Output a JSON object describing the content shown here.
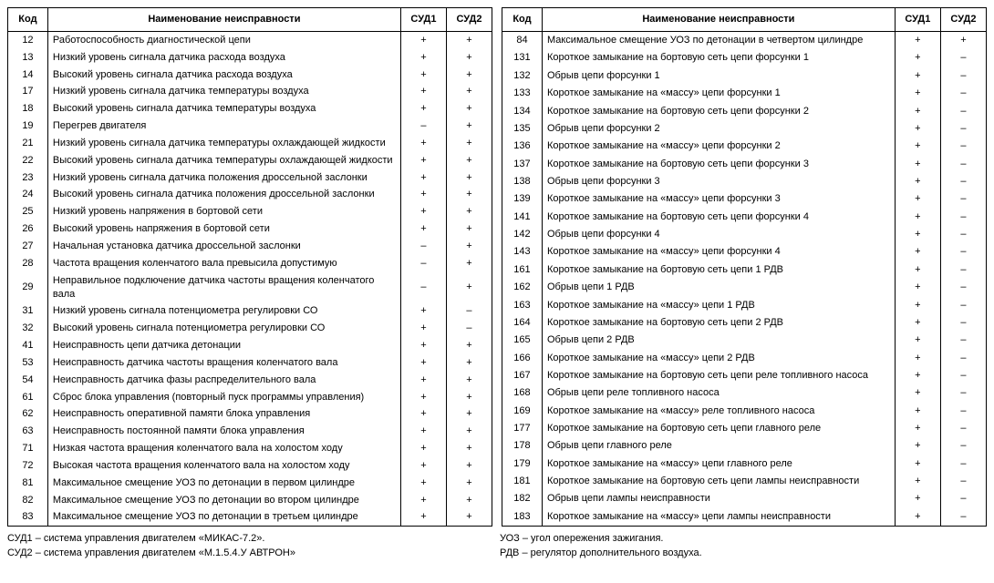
{
  "headers": {
    "code": "Код",
    "name": "Наименование неисправности",
    "sud1": "СУД1",
    "sud2": "СУД2"
  },
  "left_rows": [
    {
      "code": "12",
      "name": "Работоспособность диагностической цепи",
      "s1": "+",
      "s2": "+"
    },
    {
      "code": "13",
      "name": "Низкий уровень сигнала датчика расхода воздуха",
      "s1": "+",
      "s2": "+"
    },
    {
      "code": "14",
      "name": "Высокий уровень сигнала датчика расхода воздуха",
      "s1": "+",
      "s2": "+"
    },
    {
      "code": "17",
      "name": "Низкий уровень сигнала датчика температуры воздуха",
      "s1": "+",
      "s2": "+"
    },
    {
      "code": "18",
      "name": "Высокий уровень сигнала датчика температуры воздуха",
      "s1": "+",
      "s2": "+"
    },
    {
      "code": "19",
      "name": "Перегрев двигателя",
      "s1": "–",
      "s2": "+"
    },
    {
      "code": "21",
      "name": "Низкий уровень сигнала датчика температуры охлаждающей жидкости",
      "s1": "+",
      "s2": "+"
    },
    {
      "code": "22",
      "name": "Высокий уровень сигнала датчика температуры охлаждающей жидкости",
      "s1": "+",
      "s2": "+"
    },
    {
      "code": "23",
      "name": "Низкий уровень сигнала датчика положения дроссельной заслонки",
      "s1": "+",
      "s2": "+"
    },
    {
      "code": "24",
      "name": "Высокий уровень сигнала датчика положения дроссельной заслонки",
      "s1": "+",
      "s2": "+"
    },
    {
      "code": "25",
      "name": "Низкий уровень напряжения в бортовой сети",
      "s1": "+",
      "s2": "+"
    },
    {
      "code": "26",
      "name": "Высокий уровень напряжения в бортовой сети",
      "s1": "+",
      "s2": "+"
    },
    {
      "code": "27",
      "name": "Начальная установка датчика дроссельной заслонки",
      "s1": "–",
      "s2": "+"
    },
    {
      "code": "28",
      "name": "Частота вращения коленчатого вала превысила допустимую",
      "s1": "–",
      "s2": "+"
    },
    {
      "code": "29",
      "name": "Неправильное подключение датчика частоты вращения коленчатого вала",
      "s1": "–",
      "s2": "+"
    },
    {
      "code": "31",
      "name": "Низкий уровень сигнала потенциометра регулировки СО",
      "s1": "+",
      "s2": "–"
    },
    {
      "code": "32",
      "name": "Высокий уровень сигнала потенциометра регулировки СО",
      "s1": "+",
      "s2": "–"
    },
    {
      "code": "41",
      "name": "Неисправность цепи датчика детонации",
      "s1": "+",
      "s2": "+"
    },
    {
      "code": "53",
      "name": "Неисправность датчика частоты вращения коленчатого вала",
      "s1": "+",
      "s2": "+"
    },
    {
      "code": "54",
      "name": "Неисправность датчика фазы распределительного вала",
      "s1": "+",
      "s2": "+"
    },
    {
      "code": "61",
      "name": "Сброс блока управления (повторный пуск программы управления)",
      "s1": "+",
      "s2": "+"
    },
    {
      "code": "62",
      "name": "Неисправность оперативной памяти блока управления",
      "s1": "+",
      "s2": "+"
    },
    {
      "code": "63",
      "name": "Неисправность постоянной памяти блока управления",
      "s1": "+",
      "s2": "+"
    },
    {
      "code": "71",
      "name": "Низкая частота вращения коленчатого вала на холостом ходу",
      "s1": "+",
      "s2": "+"
    },
    {
      "code": "72",
      "name": "Высокая частота вращения коленчатого вала на холостом ходу",
      "s1": "+",
      "s2": "+"
    },
    {
      "code": "81",
      "name": "Максимальное смещение УОЗ по детонации в первом цилиндре",
      "s1": "+",
      "s2": "+"
    },
    {
      "code": "82",
      "name": "Максимальное смещение УОЗ по детонации во втором цилиндре",
      "s1": "+",
      "s2": "+"
    },
    {
      "code": "83",
      "name": "Максимальное смещение УОЗ по детонации в третьем цилиндре",
      "s1": "+",
      "s2": "+"
    }
  ],
  "right_rows": [
    {
      "code": "84",
      "name": "Максимальное смещение УОЗ по детонации в четвертом цилиндре",
      "s1": "+",
      "s2": "+"
    },
    {
      "code": "131",
      "name": "Короткое замыкание на бортовую сеть цепи форсунки 1",
      "s1": "+",
      "s2": "–"
    },
    {
      "code": "132",
      "name": "Обрыв цепи форсунки 1",
      "s1": "+",
      "s2": "–"
    },
    {
      "code": "133",
      "name": "Короткое замыкание на «массу» цепи форсунки 1",
      "s1": "+",
      "s2": "–"
    },
    {
      "code": "134",
      "name": "Короткое замыкание на бортовую сеть цепи форсунки 2",
      "s1": "+",
      "s2": "–"
    },
    {
      "code": "135",
      "name": "Обрыв цепи форсунки 2",
      "s1": "+",
      "s2": "–"
    },
    {
      "code": "136",
      "name": "Короткое замыкание на «массу» цепи форсунки 2",
      "s1": "+",
      "s2": "–"
    },
    {
      "code": "137",
      "name": "Короткое замыкание на бортовую сеть цепи форсунки 3",
      "s1": "+",
      "s2": "–"
    },
    {
      "code": "138",
      "name": "Обрыв цепи форсунки 3",
      "s1": "+",
      "s2": "–"
    },
    {
      "code": "139",
      "name": "Короткое замыкание на «массу» цепи форсунки 3",
      "s1": "+",
      "s2": "–"
    },
    {
      "code": "141",
      "name": "Короткое замыкание на бортовую сеть цепи форсунки 4",
      "s1": "+",
      "s2": "–"
    },
    {
      "code": "142",
      "name": "Обрыв цепи форсунки 4",
      "s1": "+",
      "s2": "–"
    },
    {
      "code": "143",
      "name": "Короткое замыкание на «массу» цепи форсунки 4",
      "s1": "+",
      "s2": "–"
    },
    {
      "code": "161",
      "name": "Короткое замыкание на бортовую сеть цепи 1 РДВ",
      "s1": "+",
      "s2": "–"
    },
    {
      "code": "162",
      "name": "Обрыв цепи 1 РДВ",
      "s1": "+",
      "s2": "–"
    },
    {
      "code": "163",
      "name": "Короткое замыкание на «массу» цепи 1 РДВ",
      "s1": "+",
      "s2": "–"
    },
    {
      "code": "164",
      "name": "Короткое замыкание на бортовую сеть цепи 2 РДВ",
      "s1": "+",
      "s2": "–"
    },
    {
      "code": "165",
      "name": "Обрыв цепи 2 РДВ",
      "s1": "+",
      "s2": "–"
    },
    {
      "code": "166",
      "name": "Короткое замыкание на «массу» цепи 2 РДВ",
      "s1": "+",
      "s2": "–"
    },
    {
      "code": "167",
      "name": "Короткое замыкание на бортовую сеть цепи реле топливного насоса",
      "s1": "+",
      "s2": "–"
    },
    {
      "code": "168",
      "name": "Обрыв цепи реле топливного насоса",
      "s1": "+",
      "s2": "–"
    },
    {
      "code": "169",
      "name": "Короткое замыкание на «массу» реле топливного насоса",
      "s1": "+",
      "s2": "–"
    },
    {
      "code": "177",
      "name": "Короткое замыкание на бортовую сеть цепи главного реле",
      "s1": "+",
      "s2": "–"
    },
    {
      "code": "178",
      "name": "Обрыв цепи главного реле",
      "s1": "+",
      "s2": "–"
    },
    {
      "code": "179",
      "name": "Короткое замыкание на «массу» цепи главного реле",
      "s1": "+",
      "s2": "–"
    },
    {
      "code": "181",
      "name": "Короткое замыкание на бортовую сеть цепи лампы неисправности",
      "s1": "+",
      "s2": "–"
    },
    {
      "code": "182",
      "name": "Обрыв цепи лампы неисправности",
      "s1": "+",
      "s2": "–"
    },
    {
      "code": "183",
      "name": "Короткое замыкание на «массу» цепи лампы неисправности",
      "s1": "+",
      "s2": "–"
    }
  ],
  "footnotes": {
    "left1": "СУД1 – система управления двигателем «МИКАС-7.2».",
    "left2": "СУД2 – система управления двигателем «М.1.5.4.У АВТРОН»",
    "right1": "УОЗ – угол опережения зажигания.",
    "right2": "РДВ – регулятор дополнительного воздуха."
  }
}
